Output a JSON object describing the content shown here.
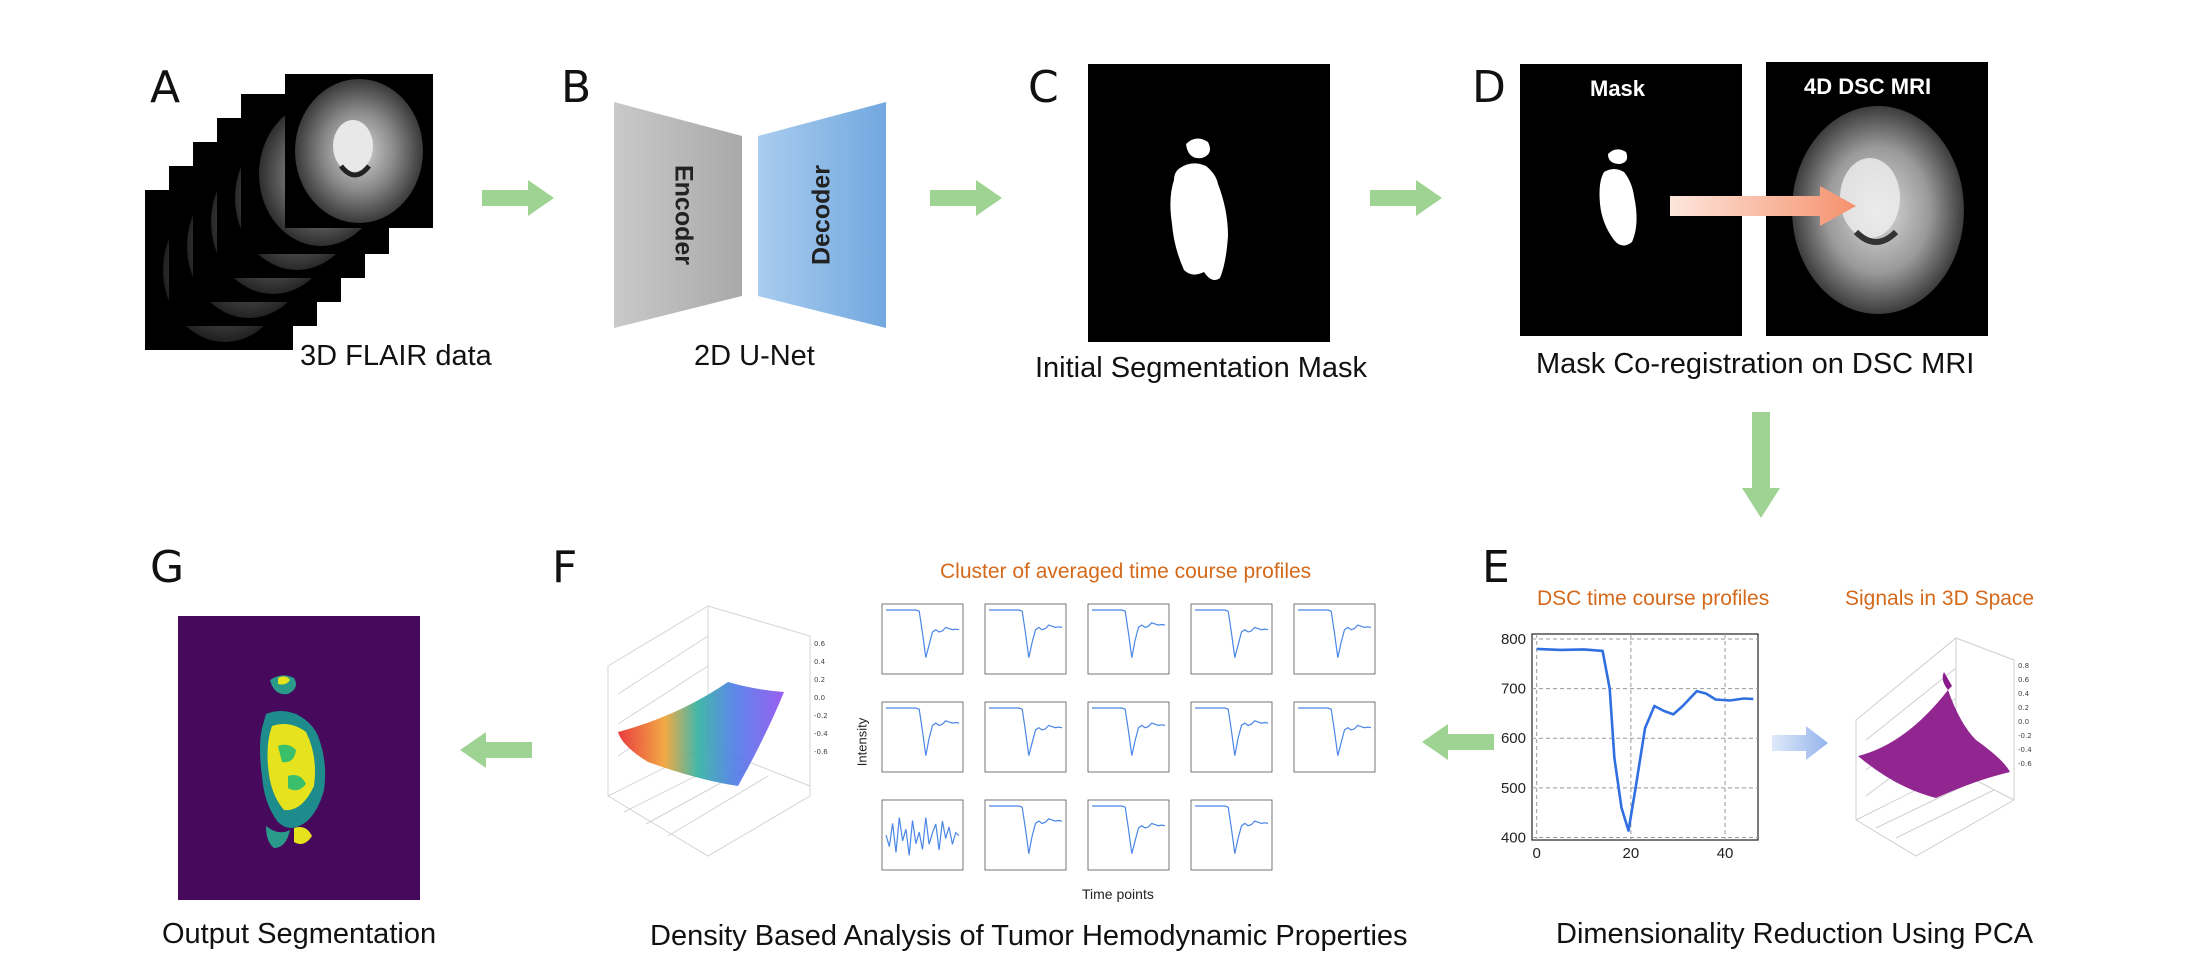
{
  "panels": {
    "a": {
      "letter": "A",
      "caption": "3D FLAIR data"
    },
    "b": {
      "letter": "B",
      "caption": "2D U-Net",
      "encoder": "Encoder",
      "decoder": "Decoder"
    },
    "c": {
      "letter": "C",
      "caption": "Initial Segmentation Mask"
    },
    "d": {
      "letter": "D",
      "caption": "Mask Co-registration on DSC MRI",
      "mask_title": "Mask",
      "mri_title": "4D DSC MRI"
    },
    "e": {
      "letter": "E",
      "caption": "Dimensionality Reduction Using PCA",
      "profiles_title": "DSC time course profiles",
      "space_title": "Signals in 3D Space"
    },
    "f": {
      "letter": "F",
      "caption": "Density Based Analysis of Tumor Hemodynamic Properties",
      "cluster_title": "Cluster of averaged time course profiles",
      "ylabel": "Intensity",
      "xlabel": "Time points"
    },
    "g": {
      "letter": "G",
      "caption": "Output Segmentation"
    }
  },
  "colors": {
    "flow_arrow": "#9fd394",
    "dsc_curve": "#2f6fe0",
    "orange_text": "#d4691b",
    "mask_bg": "#46095b",
    "cloud": "#8b1a8b"
  },
  "chart_data": {
    "type": "line",
    "title": "DSC time course profiles",
    "x": [
      0,
      5,
      10,
      14,
      15.5,
      16.5,
      18,
      19.5,
      21,
      23,
      25,
      27,
      29,
      31,
      34,
      36,
      38,
      41,
      44,
      46
    ],
    "series": [
      {
        "values": [
          780,
          778,
          779,
          776,
          700,
          560,
          460,
          414,
          500,
          620,
          665,
          655,
          648,
          665,
          695,
          690,
          678,
          676,
          680,
          679
        ]
      }
    ],
    "xticks": [
      "0",
      "20",
      "40"
    ],
    "yticks": [
      "400",
      "500",
      "600",
      "700",
      "800"
    ],
    "xlim": [
      -1,
      47
    ],
    "ylim": [
      395,
      810
    ],
    "grid": true
  }
}
